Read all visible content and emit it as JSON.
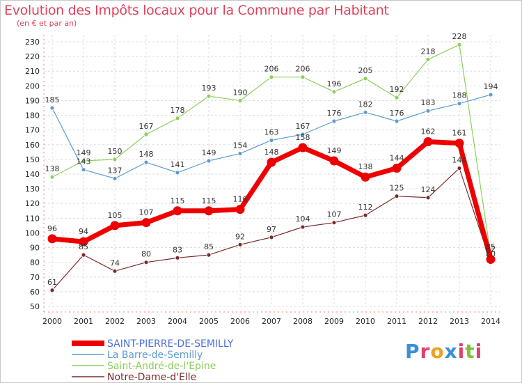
{
  "header": {
    "title": "Evolution des Impôts locaux pour la Commune par Habitant",
    "subtitle": "(en € et par an)"
  },
  "logo": {
    "text": "Proxiti",
    "letter_colors": [
      "#3b8fd8",
      "#e0406a",
      "#f0a020",
      "#3b8fd8",
      "#e0406a",
      "#80c040",
      "#e0406a"
    ]
  },
  "chart_data": {
    "type": "line",
    "x": [
      "2000",
      "2001",
      "2002",
      "2003",
      "2004",
      "2005",
      "2006",
      "2007",
      "2008",
      "2009",
      "2010",
      "2011",
      "2012",
      "2013",
      "2014"
    ],
    "ylim": [
      50,
      230
    ],
    "yticks": [
      50,
      60,
      70,
      80,
      90,
      100,
      110,
      120,
      130,
      140,
      150,
      160,
      170,
      180,
      190,
      200,
      210,
      220,
      230
    ],
    "grid": true,
    "legend_position": "bottom-left",
    "series": [
      {
        "name": "SAINT-PIERRE-DE-SEMILLY",
        "color": "#ee0000",
        "legend_color": "#4a6fd8",
        "values": [
          96,
          94,
          105,
          107,
          115,
          115,
          116,
          148,
          158,
          149,
          138,
          144,
          162,
          161,
          82
        ],
        "labels": [
          "96",
          "94",
          "105",
          "107",
          "115",
          "115",
          "116",
          "148",
          "158",
          "149",
          "138",
          "144",
          "162",
          "161",
          "82"
        ],
        "bold": true
      },
      {
        "name": "La Barre-de-Semilly",
        "color": "#5b9bd5",
        "legend_color": "#5b9bd5",
        "values": [
          185,
          143,
          137,
          148,
          141,
          149,
          154,
          163,
          167,
          176,
          182,
          176,
          183,
          188,
          194
        ],
        "labels": [
          "185",
          "143",
          "137",
          "148",
          "141",
          "149",
          "154",
          "163",
          "167",
          "176",
          "182",
          "176",
          "183",
          "188",
          "194"
        ],
        "bold": false
      },
      {
        "name": "Saint-André-de-l'Epine",
        "color": "#8ccf5a",
        "legend_color": "#8ccf5a",
        "values": [
          138,
          149,
          150,
          167,
          178,
          193,
          190,
          206,
          206,
          196,
          205,
          192,
          218,
          228,
          85
        ],
        "labels": [
          "138",
          "149",
          "150",
          "167",
          "178",
          "193",
          "190",
          "206",
          "206",
          "196",
          "205",
          "192",
          "218",
          "228",
          "85"
        ],
        "bold": false
      },
      {
        "name": "Notre-Dame-d'Elle",
        "color": "#7a2b2b",
        "legend_color": "#7a2b2b",
        "values": [
          61,
          85,
          74,
          80,
          83,
          85,
          92,
          97,
          104,
          107,
          112,
          125,
          124,
          144,
          80
        ],
        "labels": [
          "61",
          "85",
          "74",
          "80",
          "83",
          "85",
          "92",
          "97",
          "104",
          "107",
          "112",
          "125",
          "124",
          "144",
          "80"
        ],
        "bold": false
      }
    ]
  }
}
